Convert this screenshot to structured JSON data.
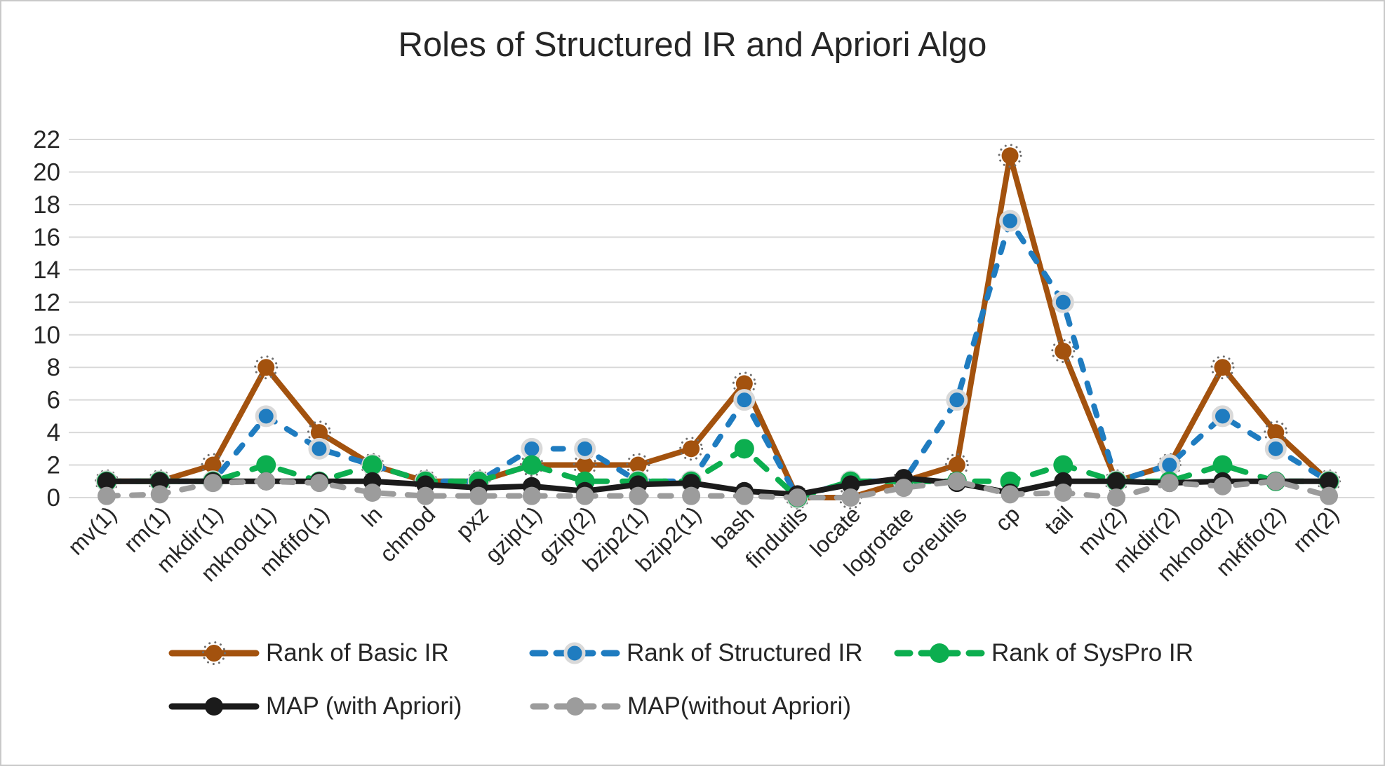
{
  "page": {
    "background": "#FFFFFF",
    "border_color": "#C9C9C9",
    "text_color": "#262626",
    "gridline_color": "#D9D9D9"
  },
  "chart_data": {
    "type": "line",
    "title": "Roles of Structured IR and Apriori Algo",
    "xlabel": "",
    "ylabel": "",
    "ylim": [
      0,
      22
    ],
    "y_ticks": [
      0,
      2,
      4,
      6,
      8,
      10,
      12,
      14,
      16,
      18,
      20,
      22
    ],
    "grid": true,
    "legend_position": "bottom",
    "categories": [
      "mv(1)",
      "rm(1)",
      "mkdir(1)",
      "mknod(1)",
      "mkfifo(1)",
      "ln",
      "chmod",
      "pxz",
      "gzip(1)",
      "gzip(2)",
      "bzip2(1)",
      "bzip2(1)",
      "bash",
      "findutils",
      "locate",
      "logrotate",
      "coreutils",
      "cp",
      "tail",
      "mv(2)",
      "mkdir(2)",
      "mknod(2)",
      "mkfifo(2)",
      "rm(2)"
    ],
    "series": [
      {
        "name": "Rank of Basic IR",
        "color": "#A3520E",
        "line": "solid",
        "dash": "",
        "marker": "burst",
        "values": [
          1,
          1,
          2,
          8,
          4,
          2,
          1,
          1,
          2,
          2,
          2,
          3,
          7,
          0,
          0,
          1,
          2,
          21,
          9,
          1,
          2,
          8,
          4,
          1
        ]
      },
      {
        "name": "Rank of Structured IR",
        "color": "#1F7CC0",
        "line": "dashed",
        "dash": "14 20",
        "marker": "halo",
        "values": [
          1,
          1,
          1,
          5,
          3,
          2,
          1,
          1,
          3,
          3,
          1,
          1,
          6,
          0,
          1,
          1,
          6,
          17,
          12,
          1,
          2,
          5,
          3,
          1
        ]
      },
      {
        "name": "Rank of SysPro IR",
        "color": "#0CAE4F",
        "line": "dashed",
        "dash": "20 22",
        "marker": "circle",
        "marker_size": 14,
        "values": [
          1,
          1,
          1,
          2,
          1,
          2,
          1,
          1,
          2,
          1,
          1,
          1,
          3,
          0,
          1,
          1,
          1,
          1,
          2,
          1,
          1,
          2,
          1,
          1
        ]
      },
      {
        "name": "MAP (with Apriori)",
        "color": "#1B1B1B",
        "line": "solid",
        "dash": "",
        "marker": "circle",
        "marker_size": 13,
        "values": [
          1,
          1,
          1,
          1,
          1,
          1,
          0.8,
          0.6,
          0.7,
          0.4,
          0.8,
          0.9,
          0.4,
          0.2,
          0.8,
          1.2,
          0.9,
          0.3,
          1,
          1,
          0.9,
          1,
          1,
          1
        ]
      },
      {
        "name": "MAP(without Apriori)",
        "color": "#9C9C9C",
        "line": "dashed",
        "dash": "16 20",
        "marker": "circle",
        "marker_size": 13,
        "values": [
          0.1,
          0.2,
          0.9,
          1,
          0.9,
          0.3,
          0.1,
          0.1,
          0.1,
          0.1,
          0.1,
          0.1,
          0.1,
          0,
          0,
          0.6,
          1,
          0.2,
          0.3,
          0,
          0.9,
          0.7,
          1,
          0.1
        ]
      }
    ]
  }
}
